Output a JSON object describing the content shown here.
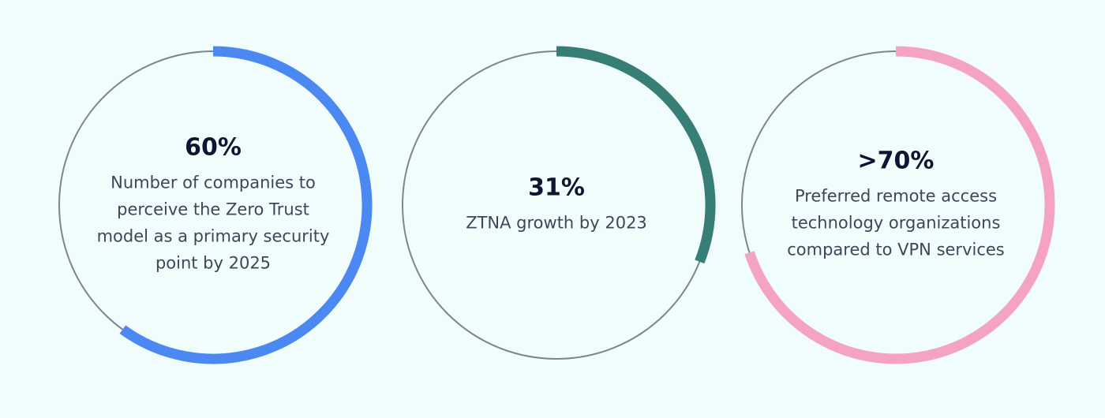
{
  "chart_data": [
    {
      "type": "ring",
      "values": [
        60
      ],
      "value_labels": [
        "60%"
      ],
      "title": "Number of companies to perceive the Zero Trust model as a primary security point by 2025",
      "color": "#4b88f2"
    },
    {
      "type": "ring",
      "values": [
        31
      ],
      "value_labels": [
        "31%"
      ],
      "title": "ZTNA growth by 2023",
      "color": "#377e77"
    },
    {
      "type": "ring",
      "values": [
        70
      ],
      "value_labels": [
        ">70%"
      ],
      "title": "Preferred remote access technology organizations compared to VPN services",
      "color": "#f5a3c5"
    }
  ]
}
